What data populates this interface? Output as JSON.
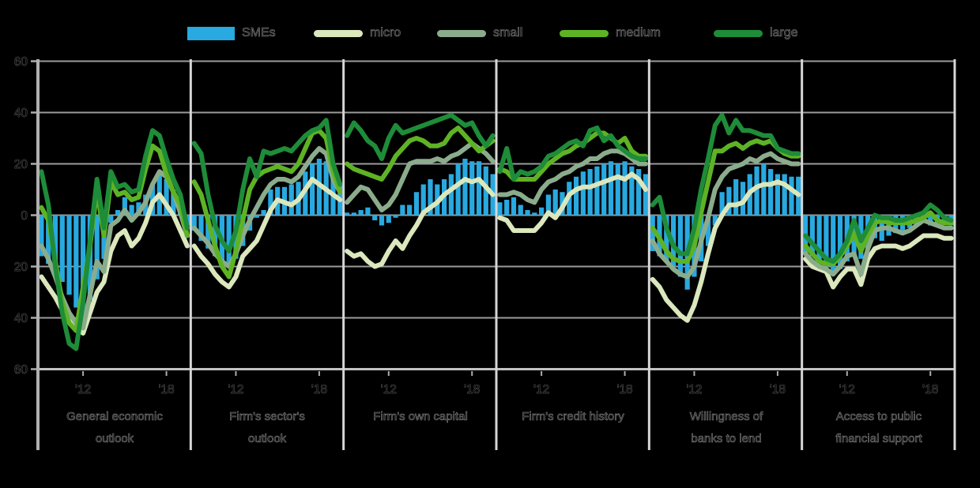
{
  "legend": {
    "items": [
      {
        "label": "SMEs",
        "color": "#28a9e0",
        "swatch": "bar"
      },
      {
        "label": "micro",
        "color": "#dbe7bc",
        "swatch": "line"
      },
      {
        "label": "small",
        "color": "#8bac8c",
        "swatch": "line"
      },
      {
        "label": "medium",
        "color": "#5eb324",
        "swatch": "line"
      },
      {
        "label": "large",
        "color": "#1e8c38",
        "swatch": "line"
      }
    ]
  },
  "chart_data": {
    "type": "bar+line, 6 panels, net percentages",
    "axes": {
      "y_tick_values": [
        60,
        40,
        20,
        0,
        -20,
        -40,
        -60
      ],
      "y_tick_labels": [
        "60",
        "40",
        "20",
        "0",
        "20",
        "40",
        "60"
      ],
      "ylim": [
        -60,
        60
      ],
      "grid": "horizontal",
      "x_ticks": [
        {
          "index": 6,
          "label": "'12"
        },
        {
          "index": 18,
          "label": "'18"
        }
      ]
    },
    "x": [
      "2009H1",
      "2009H2",
      "2010H1",
      "2010H2",
      "2011H1",
      "2011H2",
      "2012H1",
      "2012H2",
      "2013H1",
      "2013H2",
      "2014H1",
      "2014H2",
      "2015H1",
      "2015H2",
      "2016H1",
      "2016H2",
      "2017H1",
      "2017H2",
      "2018H1",
      "2018H2",
      "2019H1",
      "2019H2"
    ],
    "bar_series_name": "SMEs",
    "panels": [
      {
        "title": "General economic outlook",
        "title_lines": [
          "General economic",
          "outlook"
        ],
        "bars": [
          -16,
          -19,
          -21,
          -26,
          -31,
          -36,
          -40,
          -33,
          -25,
          -17,
          -3,
          2,
          7,
          4,
          5,
          8,
          12,
          16,
          14,
          10,
          3,
          -4
        ],
        "lines": [
          {
            "name": "micro",
            "values": [
              -24,
              -28,
              -32,
              -37,
              -41,
              -44,
              -46,
              -38,
              -30,
              -26,
              -14,
              -8,
              -6,
              -12,
              -9,
              -3,
              5,
              8,
              4,
              0,
              -6,
              -12
            ]
          },
          {
            "name": "small",
            "values": [
              -12,
              -17,
              -24,
              -32,
              -38,
              -42,
              -44,
              -31,
              -18,
              -22,
              -4,
              -2,
              2,
              -2,
              1,
              5,
              12,
              17,
              15,
              9,
              1,
              -8
            ]
          },
          {
            "name": "medium",
            "values": [
              3,
              -2,
              -18,
              -34,
              -42,
              -45,
              -28,
              -12,
              10,
              -8,
              13,
              8,
              9,
              6,
              7,
              18,
              27,
              25,
              16,
              9,
              4,
              -8
            ]
          },
          {
            "name": "large",
            "values": [
              17,
              4,
              -20,
              -38,
              -50,
              -52,
              -34,
              -10,
              14,
              -5,
              17,
              11,
              12,
              9,
              10,
              23,
              33,
              31,
              22,
              14,
              8,
              -5
            ]
          }
        ]
      },
      {
        "title": "Firm's sector's outlook",
        "title_lines": [
          "Firm's sector's",
          "outlook"
        ],
        "bars": [
          -6,
          -10,
          -13,
          -16,
          -19,
          -20,
          -17,
          -12,
          -6,
          -1,
          2,
          10,
          11,
          11,
          12,
          13,
          17,
          20,
          22,
          21,
          16,
          12
        ],
        "lines": [
          {
            "name": "micro",
            "values": [
              -12,
              -16,
              -19,
              -23,
              -26,
              -28,
              -24,
              -16,
              -13,
              -10,
              -4,
              2,
              6,
              5,
              4,
              6,
              10,
              14,
              12,
              10,
              8,
              6
            ]
          },
          {
            "name": "small",
            "values": [
              -5,
              -8,
              -11,
              -15,
              -18,
              -20,
              -15,
              -8,
              -2,
              3,
              8,
              12,
              14,
              14,
              13,
              15,
              19,
              23,
              26,
              24,
              14,
              9
            ]
          },
          {
            "name": "medium",
            "values": [
              13,
              8,
              -2,
              -12,
              -20,
              -24,
              -14,
              -2,
              10,
              15,
              17,
              18,
              19,
              18,
              17,
              20,
              26,
              32,
              33,
              30,
              17,
              9
            ]
          },
          {
            "name": "large",
            "values": [
              28,
              24,
              8,
              -4,
              -10,
              -14,
              -6,
              10,
              22,
              15,
              25,
              24,
              25,
              26,
              25,
              28,
              31,
              33,
              34,
              37,
              20,
              12
            ]
          }
        ]
      },
      {
        "title": "Firm's own capital",
        "title_lines": [
          "Firm's own capital"
        ],
        "bars": [
          1,
          1,
          2,
          3,
          -2,
          -4,
          -3,
          -1,
          4,
          4,
          9,
          12,
          14,
          12,
          14,
          16,
          20,
          22,
          21,
          21,
          19,
          16
        ],
        "lines": [
          {
            "name": "micro",
            "values": [
              -14,
              -16,
              -15,
              -18,
              -20,
              -19,
              -14,
              -10,
              -13,
              -8,
              -4,
              1,
              3,
              5,
              8,
              10,
              12,
              14,
              13,
              14,
              11,
              8
            ]
          },
          {
            "name": "small",
            "values": [
              5,
              8,
              11,
              10,
              6,
              2,
              4,
              8,
              14,
              20,
              21,
              21,
              21,
              22,
              21,
              23,
              24,
              26,
              28,
              26,
              24,
              21
            ]
          },
          {
            "name": "medium",
            "values": [
              20,
              18,
              17,
              16,
              15,
              14,
              18,
              23,
              26,
              29,
              30,
              29,
              27,
              27,
              28,
              32,
              34,
              31,
              28,
              25,
              27,
              29
            ]
          },
          {
            "name": "large",
            "values": [
              31,
              36,
              33,
              29,
              27,
              22,
              30,
              35,
              32,
              33,
              34,
              35,
              36,
              37,
              38,
              39,
              37,
              35,
              36,
              31,
              27,
              31
            ]
          }
        ]
      },
      {
        "title": "Firm's credit history",
        "title_lines": [
          "Firm's credit history"
        ],
        "bars": [
          5,
          6,
          7,
          4,
          2,
          1,
          3,
          8,
          10,
          9,
          13,
          15,
          17,
          18,
          19,
          20,
          21,
          20,
          21,
          19,
          18,
          16
        ],
        "lines": [
          {
            "name": "micro",
            "values": [
              -1,
              -2,
              -6,
              -6,
              -6,
              -6,
              -3,
              1,
              -1,
              3,
              8,
              10,
              11,
              11,
              12,
              13,
              14,
              15,
              14,
              16,
              14,
              10
            ]
          },
          {
            "name": "small",
            "values": [
              8,
              8,
              9,
              8,
              6,
              5,
              10,
              13,
              14,
              16,
              17,
              19,
              20,
              22,
              22,
              24,
              25,
              25,
              24,
              22,
              20,
              20
            ]
          },
          {
            "name": "medium",
            "values": [
              18,
              17,
              14,
              14,
              14,
              14,
              17,
              20,
              22,
              24,
              25,
              27,
              28,
              30,
              32,
              32,
              30,
              28,
              30,
              25,
              23,
              23
            ]
          },
          {
            "name": "large",
            "values": [
              17,
              26,
              14,
              17,
              16,
              17,
              19,
              23,
              24,
              26,
              28,
              29,
              27,
              33,
              34,
              29,
              31,
              27,
              25,
              23,
              22,
              22
            ]
          }
        ]
      },
      {
        "title": "Willingness of banks to lend",
        "title_lines": [
          "Willingness of",
          "banks to lend"
        ],
        "bars": [
          -14,
          -16,
          -18,
          -20,
          -24,
          -29,
          -24,
          -18,
          -12,
          -4,
          9,
          11,
          14,
          13,
          16,
          19,
          20,
          18,
          16,
          16,
          15,
          15
        ],
        "lines": [
          {
            "name": "micro",
            "values": [
              -25,
              -28,
              -33,
              -36,
              -39,
              -41,
              -35,
              -26,
              -15,
              -5,
              0,
              4,
              4,
              5,
              9,
              11,
              12,
              12,
              13,
              12,
              10,
              8
            ]
          },
          {
            "name": "small",
            "values": [
              -10,
              -15,
              -18,
              -21,
              -23,
              -24,
              -20,
              -10,
              -1,
              10,
              15,
              18,
              19,
              20,
              22,
              21,
              23,
              24,
              22,
              21,
              20,
              20
            ]
          },
          {
            "name": "medium",
            "values": [
              -5,
              -9,
              -14,
              -17,
              -18,
              -18,
              -12,
              1,
              13,
              25,
              25,
              27,
              28,
              26,
              28,
              29,
              28,
              29,
              26,
              24,
              23,
              23
            ]
          },
          {
            "name": "large",
            "values": [
              4,
              7,
              -5,
              -12,
              -15,
              -15,
              -5,
              10,
              22,
              35,
              39,
              32,
              37,
              33,
              33,
              32,
              31,
              31,
              26,
              25,
              24,
              24
            ]
          }
        ]
      },
      {
        "title": "Access to public financial support",
        "title_lines": [
          "Access to public",
          "financial support"
        ],
        "bars": [
          -15,
          -16,
          -18,
          -20,
          -23,
          -21,
          -18,
          -16,
          -17,
          -13,
          -9,
          -10,
          -8,
          -7,
          -6,
          -5,
          -4,
          -3,
          -4,
          -3,
          -3,
          -4
        ],
        "lines": [
          {
            "name": "micro",
            "values": [
              -17,
              -20,
              -21,
              -22,
              -28,
              -24,
              -21,
              -21,
              -27,
              -17,
              -13,
              -12,
              -12,
              -12,
              -13,
              -12,
              -10,
              -8,
              -8,
              -8,
              -9,
              -9
            ]
          },
          {
            "name": "small",
            "values": [
              -15,
              -18,
              -20,
              -21,
              -23,
              -20,
              -16,
              -15,
              -23,
              -13,
              -6,
              -5,
              -5,
              -6,
              -7,
              -6,
              -4,
              -2,
              -3,
              -4,
              -5,
              -5
            ]
          },
          {
            "name": "medium",
            "values": [
              -12,
              -15,
              -18,
              -19,
              -19,
              -16,
              -12,
              -7,
              -14,
              -8,
              -3,
              -2,
              -3,
              -3,
              -3,
              -3,
              -2,
              -1,
              1,
              -2,
              -3,
              -3
            ]
          },
          {
            "name": "large",
            "values": [
              -8,
              -11,
              -14,
              -17,
              -18,
              -15,
              -10,
              -2,
              -10,
              -5,
              0,
              -1,
              -1,
              -2,
              -2,
              -1,
              0,
              1,
              4,
              2,
              -1,
              -2
            ]
          }
        ]
      }
    ]
  }
}
